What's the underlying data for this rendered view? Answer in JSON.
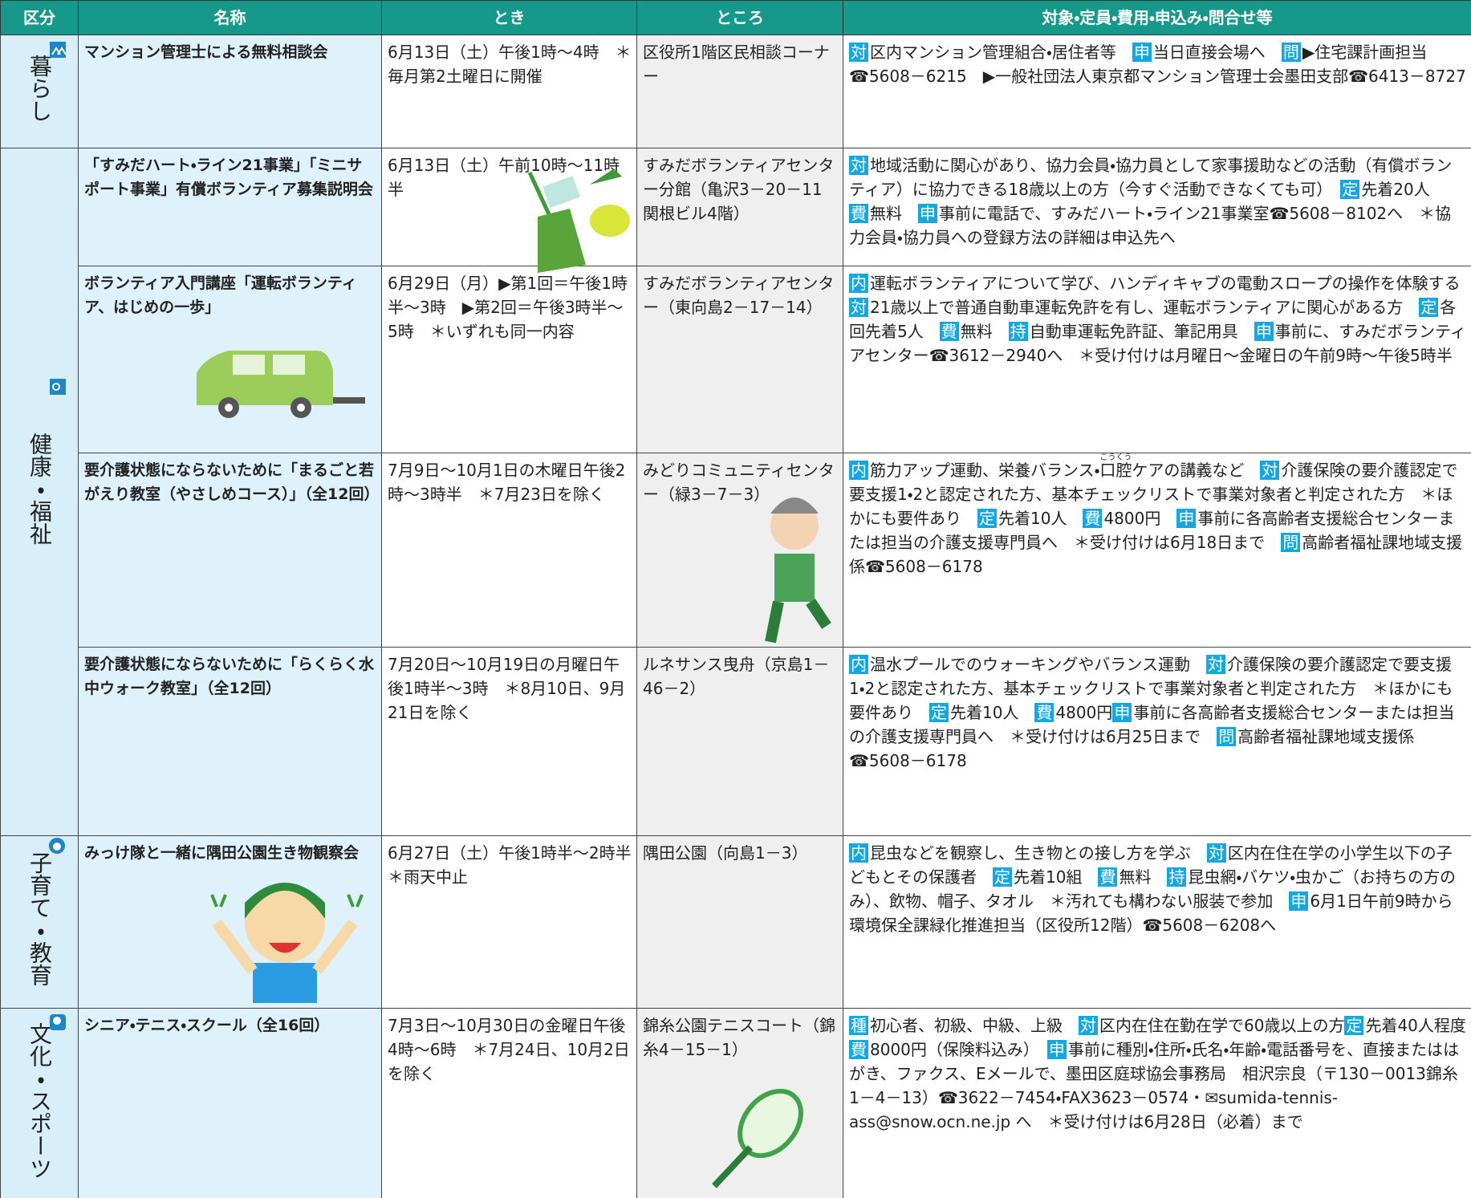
{
  "header": {
    "columns": [
      "区分",
      "名称",
      "とき",
      "ところ",
      "対象・定員・費用・申込み・問合せ等"
    ]
  },
  "sections": [
    {
      "category": "暮らし",
      "rows": [
        {
          "name": "マンション管理士による無料相談会",
          "when": "6月13日（土）午後1時～4時　＊毎月第2土曜日に開催",
          "where": "区役所1階区民相談コーナー",
          "details": [
            {
              "tag": "対",
              "text": "区内マンション管理組合・居住者等　"
            },
            {
              "tag": "申",
              "text": "当日直接会場へ　"
            },
            {
              "tag": "問",
              "text": "▶住宅課計画担当☎5608－6215　▶一般社団法人東京都マンション管理士会墨田支部☎6413－8727"
            }
          ]
        }
      ]
    },
    {
      "category": "健康・福祉",
      "rows": [
        {
          "name": "「すみだハート・ライン21事業」「ミニサポート事業」有償ボランティア募集説明会",
          "when": "6月13日（土）午前10時～11時半",
          "where": "すみだボランティアセンター分館（亀沢3－20－11関根ビル4階）",
          "details": [
            {
              "tag": "対",
              "text": "地域活動に関心があり、協力会員・協力員として家事援助などの活動（有償ボランティア）に協力できる18歳以上の方（今すぐ活動できなくても可）　"
            },
            {
              "tag": "定",
              "text": "先着20人　"
            },
            {
              "tag": "費",
              "text": "無料　"
            },
            {
              "tag": "申",
              "text": "事前に電話で、すみだハート・ライン21事業室☎5608－8102へ　＊協力会員・協力員への登録方法の詳細は申込先へ"
            }
          ]
        },
        {
          "name": "ボランティア入門講座「運転ボランティア、はじめの一歩」",
          "when": "6月29日（月）▶第1回＝午後1時半～3時　▶第2回＝午後3時半～5時　＊いずれも同一内容",
          "where": "すみだボランティアセンター（東向島2－17－14）",
          "details": [
            {
              "tag": "内",
              "text": "運転ボランティアについて学び、ハンディキャブの電動スロープの操作を体験する　"
            },
            {
              "tag": "対",
              "text": "21歳以上で普通自動車運転免許を有し、運転ボランティアに関心がある方　"
            },
            {
              "tag": "定",
              "text": "各回先着5人　"
            },
            {
              "tag": "費",
              "text": "無料　"
            },
            {
              "tag": "持",
              "text": "自動車運転免許証、筆記用具　"
            },
            {
              "tag": "申",
              "text": "事前に、すみだボランティアセンター☎3612－2940へ　＊受け付けは月曜日～金曜日の午前9時～午後5時半"
            }
          ]
        },
        {
          "name": "要介護状態にならないために「まるごと若がえり教室（やさしめコース）」（全12回）",
          "when": "7月9日～10月1日の木曜日午後2時～3時半　＊7月23日を除く",
          "where": "みどりコミュニティセンター（緑3－7－3）",
          "details": [
            {
              "tag": "内",
              "text": "筋力アップ運動、栄養バランス・"
            },
            {
              "text": "口腔",
              "ruby": "こうくう"
            },
            {
              "text": "ケアの講義など　"
            },
            {
              "tag": "対",
              "text": "介護保険の要介護認定で要支援1・2と認定された方、基本チェックリストで事業対象者と判定された方　＊ほかにも要件あり　"
            },
            {
              "tag": "定",
              "text": "先着10人　"
            },
            {
              "tag": "費",
              "text": "4800円　"
            },
            {
              "tag": "申",
              "text": "事前に各高齢者支援総合センターまたは担当の介護支援専門員へ　＊受け付けは6月18日まで　"
            },
            {
              "tag": "問",
              "text": "高齢者福祉課地域支援係☎5608－6178"
            }
          ]
        },
        {
          "name": "要介護状態にならないために「らくらく水中ウォーク教室」（全12回）",
          "when": "7月20日～10月19日の月曜日午後1時半～3時　＊8月10日、9月21日を除く",
          "where": "ルネサンス曳舟（京島1－46－2）",
          "details": [
            {
              "tag": "内",
              "text": "温水プールでのウォーキングやバランス運動　"
            },
            {
              "tag": "対",
              "text": "介護保険の要介護認定で要支援1・2と認定された方、基本チェックリストで事業対象者と判定された方　＊ほかにも要件あり　"
            },
            {
              "tag": "定",
              "text": "先着10人　"
            },
            {
              "tag": "費",
              "text": "4800円"
            },
            {
              "tag": "申",
              "text": "事前に各高齢者支援総合センターまたは担当の介護支援専門員へ　＊受け付けは6月25日まで　"
            },
            {
              "tag": "問",
              "text": "高齢者福祉課地域支援係☎5608－6178"
            }
          ]
        }
      ]
    },
    {
      "category": "子育て・教育",
      "rows": [
        {
          "name": "みっけ隊と一緒に隅田公園生き物観察会",
          "when": "6月27日（土）午後1時半～2時半　＊雨天中止",
          "where": "隅田公園（向島1－3）",
          "details": [
            {
              "tag": "内",
              "text": "昆虫などを観察し、生き物との接し方を学ぶ　"
            },
            {
              "tag": "対",
              "text": "区内在住在学の小学生以下の子どもとその保護者　"
            },
            {
              "tag": "定",
              "text": "先着10組　"
            },
            {
              "tag": "費",
              "text": "無料　"
            },
            {
              "tag": "持",
              "text": "昆虫網・バケツ・虫かご（お持ちの方のみ）、飲物、帽子、タオル　＊汚れても構わない服装で参加　"
            },
            {
              "tag": "申",
              "text": "6月1日午前9時から環境保全課緑化推進担当（区役所12階）☎5608－6208へ"
            }
          ]
        }
      ]
    },
    {
      "category": "文化・スポーツ",
      "rows": [
        {
          "name": "シニア・テニス・スクール（全16回）",
          "when": "7月3日～10月30日の金曜日午後4時～6時　＊7月24日、10月2日を除く",
          "where": "錦糸公園テニスコート（錦糸4－15－1）",
          "details": [
            {
              "tag": "種",
              "text": "初心者、初級、中級、上級　"
            },
            {
              "tag": "対",
              "text": "区内在住在勤在学で60歳以上の方"
            },
            {
              "tag": "定",
              "text": "先着40人程度　"
            },
            {
              "tag": "費",
              "text": "8000円（保険料込み）　"
            },
            {
              "tag": "申",
              "text": "事前に種別・住所・氏名・年齢・電話番号を、直接またははがき、ファクス、Eメールで、墨田区庭球協会事務局　相沢宗良（〒130－0013錦糸1－4－13）☎3622－7454・FAX3623－0574・✉sumida-tennis-ass@snow.ocn.ne.jp へ　＊受け付けは6月28日（必着）まで"
            }
          ]
        }
      ]
    }
  ]
}
